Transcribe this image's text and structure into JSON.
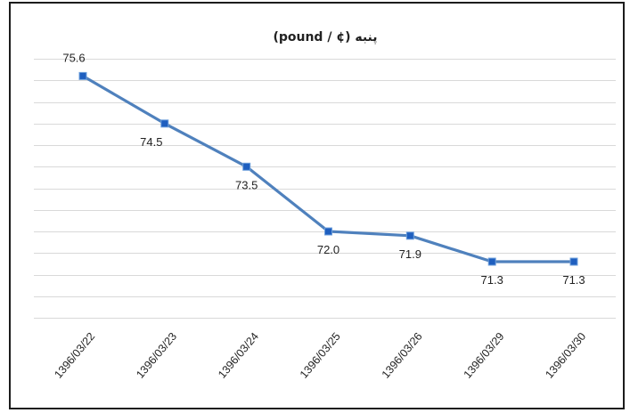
{
  "chart_data": {
    "type": "line",
    "title": "پنبه (¢ / pound)",
    "categories": [
      "1396/03/22",
      "1396/03/23",
      "1396/03/24",
      "1396/03/25",
      "1396/03/26",
      "1396/03/29",
      "1396/03/30"
    ],
    "series": [
      {
        "values": [
          75.6,
          74.5,
          73.5,
          72.0,
          71.9,
          71.3,
          71.3
        ]
      }
    ],
    "data_labels": [
      "75.6",
      "74.5",
      "73.5",
      "72.0",
      "71.9",
      "71.3",
      "71.3"
    ],
    "ylim": [
      70.0,
      76.0
    ],
    "grid": true,
    "legend": "none",
    "colors": {
      "line": "#4f81bd",
      "marker": "#1f5fbf",
      "grid": "#d9d9d9",
      "frame": "#1c1c1c"
    }
  }
}
